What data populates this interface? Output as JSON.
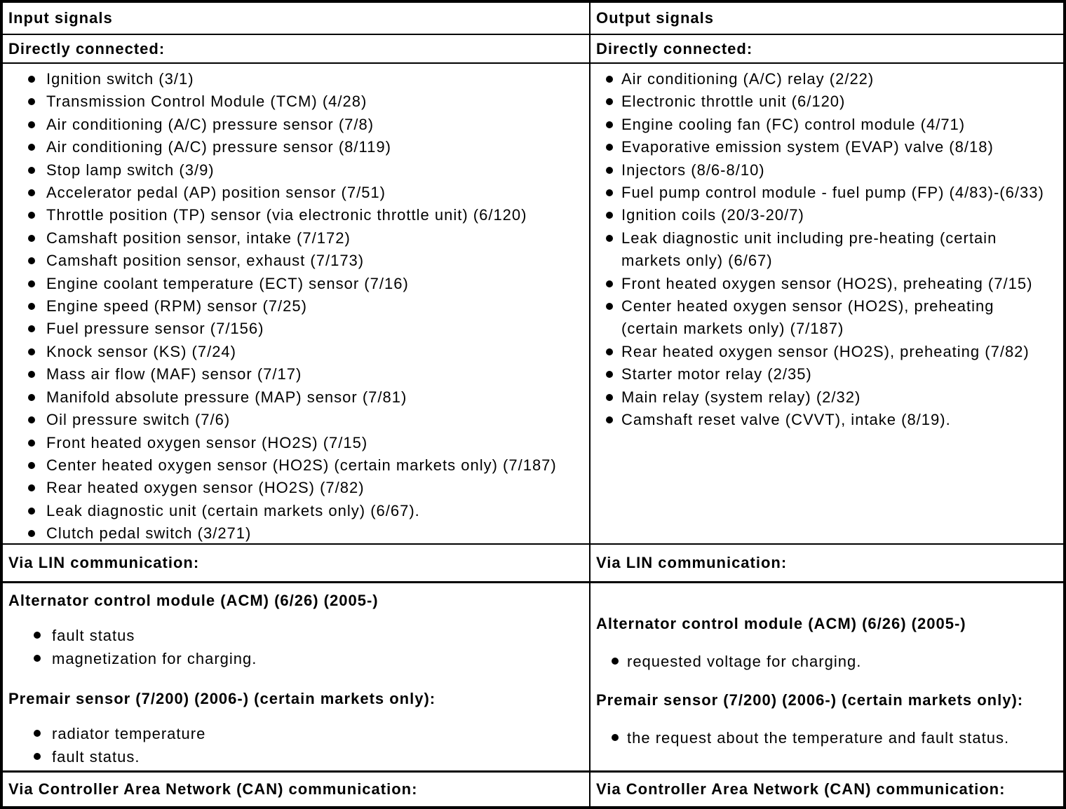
{
  "colors": {
    "text": "#000000",
    "background": "#ffffff",
    "border": "#000000"
  },
  "table": {
    "columns": [
      {
        "header": "Input signals",
        "directly_connected_label": "Directly connected:",
        "direct_items": [
          "Ignition switch (3/1)",
          "Transmission Control Module (TCM) (4/28)",
          "Air conditioning (A/C) pressure sensor (7/8)",
          "Air conditioning (A/C) pressure sensor (8/119)",
          "Stop lamp switch (3/9)",
          "Accelerator pedal (AP) position sensor (7/51)",
          "Throttle position (TP) sensor (via electronic throttle unit) (6/120)",
          "Camshaft position sensor, intake (7/172)",
          "Camshaft position sensor, exhaust (7/173)",
          "Engine coolant temperature (ECT) sensor (7/16)",
          "Engine speed (RPM) sensor (7/25)",
          "Fuel pressure sensor (7/156)",
          "Knock sensor (KS) (7/24)",
          "Mass air flow (MAF) sensor (7/17)",
          "Manifold absolute pressure (MAP) sensor (7/81)",
          "Oil pressure switch (7/6)",
          "Front heated oxygen sensor (HO2S) (7/15)",
          "Center heated oxygen sensor (HO2S) (certain markets only) (7/187)",
          "Rear heated oxygen sensor (HO2S) (7/82)",
          "Leak diagnostic unit (certain markets only) (6/67).",
          "Clutch pedal switch (3/271)"
        ],
        "via_lin_label": "Via LIN communication:",
        "lin_sections": [
          {
            "heading": "Alternator control module (ACM) (6/26) (2005-)",
            "items": [
              "fault status",
              "magnetization for charging."
            ]
          },
          {
            "heading": "Premair sensor (7/200) (2006-) (certain markets only):",
            "items": [
              "radiator temperature",
              "fault status."
            ]
          }
        ],
        "via_can_label": "Via Controller Area Network (CAN) communication:"
      },
      {
        "header": "Output signals",
        "directly_connected_label": "Directly connected:",
        "direct_items": [
          "Air conditioning (A/C) relay (2/22)",
          "Electronic throttle unit (6/120)",
          "Engine cooling fan (FC) control module (4/71)",
          "Evaporative emission system (EVAP) valve (8/18)",
          "Injectors (8/6-8/10)",
          "Fuel pump control module - fuel pump (FP) (4/83)-(6/33)",
          "Ignition coils (20/3-20/7)",
          "Leak diagnostic unit including pre-heating (certain markets only) (6/67)",
          "Front heated oxygen sensor (HO2S), preheating (7/15)",
          "Center heated oxygen sensor (HO2S), preheating (certain markets only) (7/187)",
          "Rear heated oxygen sensor (HO2S), preheating (7/82)",
          "Starter motor relay (2/35)",
          "Main relay (system relay) (2/32)",
          "Camshaft reset valve (CVVT), intake (8/19)."
        ],
        "via_lin_label": "Via LIN communication:",
        "lin_sections": [
          {
            "heading": "Alternator control module (ACM) (6/26) (2005-)",
            "items": [
              "requested voltage for charging."
            ]
          },
          {
            "heading": "Premair sensor (7/200) (2006-) (certain markets only):",
            "items": [
              "the request about the temperature and fault status."
            ]
          }
        ],
        "via_can_label": "Via Controller Area Network (CAN) communication:"
      }
    ]
  }
}
